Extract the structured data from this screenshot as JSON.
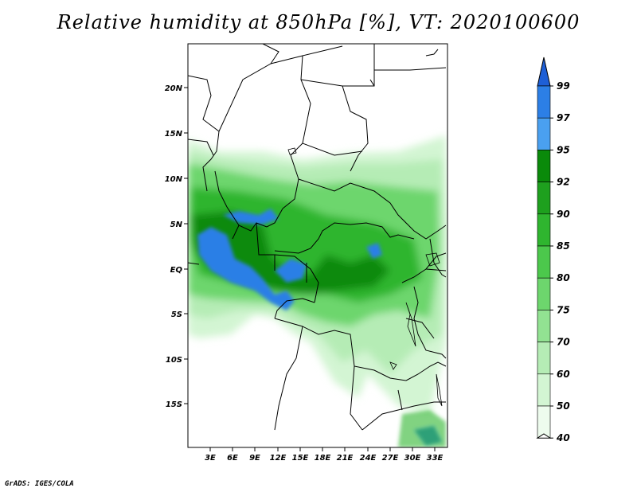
{
  "title": "Relative humidity at 850hPa [%], VT: 2020100600",
  "credit": "GrADS: IGES/COLA",
  "map": {
    "lat_labels": [
      "20N",
      "15N",
      "10N",
      "5N",
      "EQ",
      "5S",
      "10S",
      "15S"
    ],
    "lon_labels": [
      "3E",
      "6E",
      "9E",
      "12E",
      "15E",
      "18E",
      "21E",
      "24E",
      "27E",
      "30E",
      "33E"
    ]
  },
  "colorbar": {
    "labels": [
      "99",
      "97",
      "95",
      "92",
      "90",
      "85",
      "80",
      "75",
      "70",
      "60",
      "50",
      "40"
    ],
    "colors": [
      "#1e5fd6",
      "#2c7fe6",
      "#4aa0f0",
      "#0a8a0a",
      "#1ea01e",
      "#2fb52f",
      "#4cc84c",
      "#6dd66d",
      "#92e292",
      "#b5ecb5",
      "#d3f5d3",
      "#eefcee"
    ]
  }
}
